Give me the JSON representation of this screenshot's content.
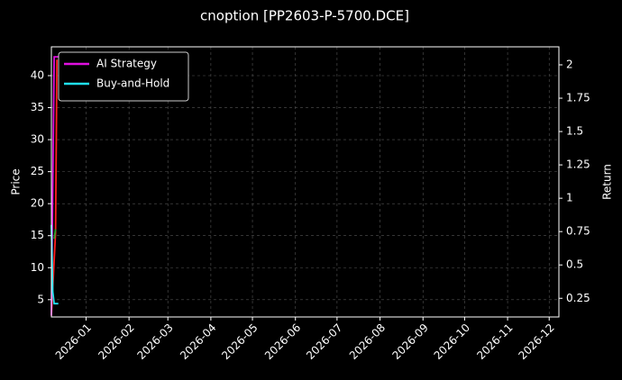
{
  "chart_data": {
    "type": "line",
    "title": "cnoption [PP2603-P-5700.DCE]",
    "ylabel": "Price",
    "y2label": "Return",
    "xlim": [
      "2025-12-07",
      "2026-12-08"
    ],
    "xticks": [
      "2026-01",
      "2026-02",
      "2026-03",
      "2026-04",
      "2026-05",
      "2026-06",
      "2026-07",
      "2026-08",
      "2026-09",
      "2026-10",
      "2026-11",
      "2026-12"
    ],
    "ylim": [
      2.3,
      44.5
    ],
    "yticks": [
      5,
      10,
      15,
      20,
      25,
      30,
      35,
      40
    ],
    "y2lim": [
      0.11,
      2.135
    ],
    "y2ticks": [
      0.25,
      0.5,
      0.75,
      1.0,
      1.25,
      1.5,
      1.75,
      2.0
    ],
    "grid": true,
    "legend": "upper left",
    "series": [
      {
        "color": "#ff2020",
        "x": [
          "2025-12-07",
          "2025-12-10",
          "2025-12-11"
        ],
        "values": [
          2.5,
          15.5,
          42.5
        ]
      },
      {
        "color": "#2ca02c",
        "x": [
          "2025-12-09",
          "2025-12-10"
        ],
        "values": [
          14.5,
          16
        ]
      },
      {
        "name": "AI Strategy",
        "color": "#e010e0",
        "axis": "y2",
        "x": [
          "2025-12-07",
          "2025-12-09",
          "2025-12-11",
          "2025-12-12"
        ],
        "values": [
          0.12,
          2.06,
          2.06,
          2.06
        ]
      },
      {
        "name": "Buy-and-Hold",
        "color": "#20e0f0",
        "axis": "y2",
        "x": [
          "2025-12-07",
          "2025-12-08",
          "2025-12-09",
          "2025-12-11",
          "2025-12-12"
        ],
        "values": [
          0.8,
          0.3,
          0.21,
          0.21,
          0.21
        ]
      }
    ]
  }
}
